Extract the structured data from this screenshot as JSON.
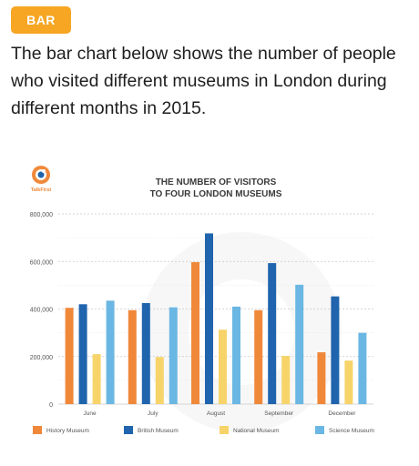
{
  "header": {
    "badge_label": "BAR",
    "description": "The bar chart below shows the number of people who visited different museums in London during different months in 2015."
  },
  "logo": {
    "text": "TalkFirst"
  },
  "colors": {
    "badge": "#f6a623",
    "history": "#f0883a",
    "british": "#1f64ad",
    "national": "#f7d46a",
    "science": "#6bb7e3"
  },
  "chart_data": {
    "type": "bar",
    "title": "THE NUMBER OF VISITORS",
    "subtitle": "TO FOUR LONDON MUSEUMS",
    "categories": [
      "June",
      "July",
      "August",
      "September",
      "December"
    ],
    "ylim": [
      0,
      800000
    ],
    "yticks": [
      "0",
      "200,000",
      "400,000",
      "600,000",
      "800,000"
    ],
    "grid": true,
    "legend": "bottom",
    "series": [
      {
        "name": "History Museum",
        "color": "#f0883a",
        "values": [
          405000,
          395000,
          597000,
          395000,
          218000
        ]
      },
      {
        "name": "British Museum",
        "color": "#1f64ad",
        "values": [
          420000,
          425000,
          718000,
          593000,
          453000
        ]
      },
      {
        "name": "National Museum",
        "color": "#f7d46a",
        "values": [
          210000,
          198000,
          313000,
          203000,
          183000
        ]
      },
      {
        "name": "Science Museum",
        "color": "#6bb7e3",
        "values": [
          435000,
          407000,
          410000,
          502000,
          300000
        ]
      }
    ]
  }
}
